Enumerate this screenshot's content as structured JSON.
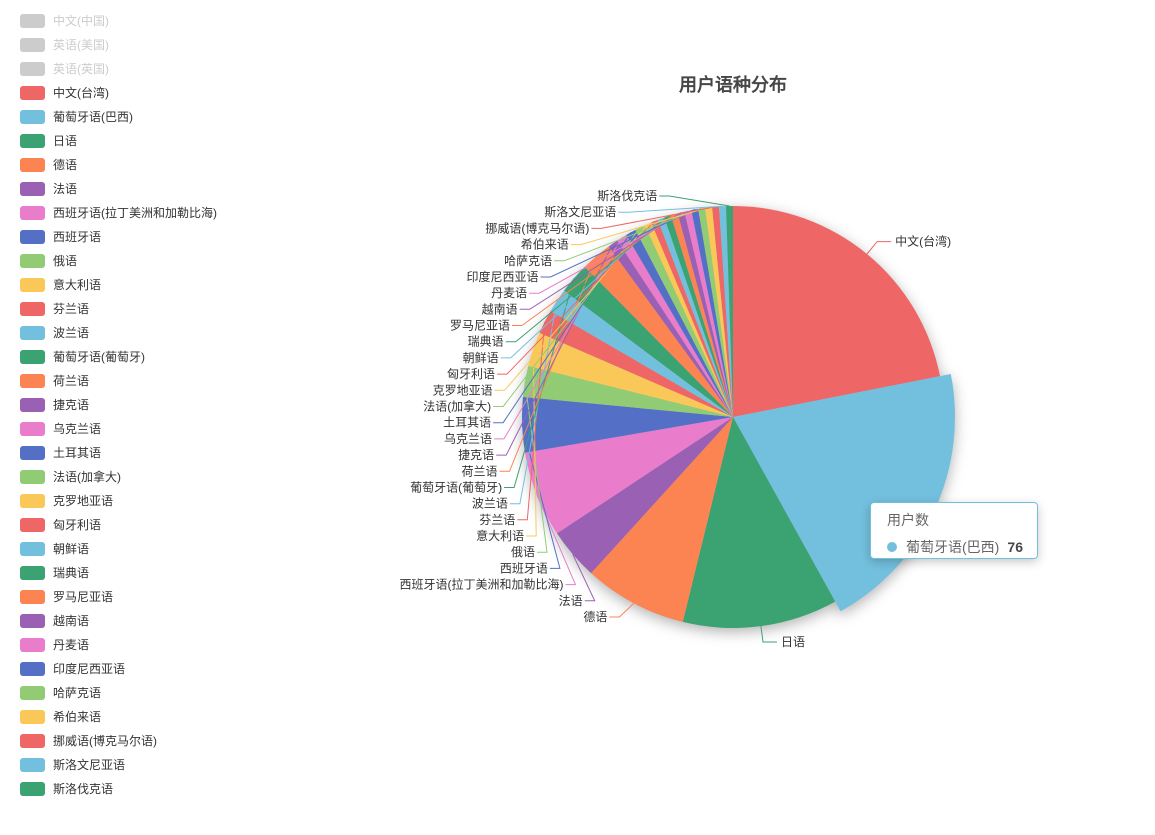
{
  "title": {
    "text": "用户语种分布"
  },
  "legend": {
    "items": [
      {
        "label": "中文(中国)",
        "color": "#cccccc",
        "enabled": false
      },
      {
        "label": "英语(美国)",
        "color": "#cccccc",
        "enabled": false
      },
      {
        "label": "英语(英国)",
        "color": "#cccccc",
        "enabled": false
      },
      {
        "label": "中文(台湾)",
        "color": "#ee6666",
        "enabled": true
      },
      {
        "label": "葡萄牙语(巴西)",
        "color": "#73c0de",
        "enabled": true
      },
      {
        "label": "日语",
        "color": "#3ba272",
        "enabled": true
      },
      {
        "label": "德语",
        "color": "#fc8452",
        "enabled": true
      },
      {
        "label": "法语",
        "color": "#9a60b4",
        "enabled": true
      },
      {
        "label": "西班牙语(拉丁美洲和加勒比海)",
        "color": "#ea7ccc",
        "enabled": true
      },
      {
        "label": "西班牙语",
        "color": "#5470c6",
        "enabled": true
      },
      {
        "label": "俄语",
        "color": "#91cc75",
        "enabled": true
      },
      {
        "label": "意大利语",
        "color": "#fac858",
        "enabled": true
      },
      {
        "label": "芬兰语",
        "color": "#ee6666",
        "enabled": true
      },
      {
        "label": "波兰语",
        "color": "#73c0de",
        "enabled": true
      },
      {
        "label": "葡萄牙语(葡萄牙)",
        "color": "#3ba272",
        "enabled": true
      },
      {
        "label": "荷兰语",
        "color": "#fc8452",
        "enabled": true
      },
      {
        "label": "捷克语",
        "color": "#9a60b4",
        "enabled": true
      },
      {
        "label": "乌克兰语",
        "color": "#ea7ccc",
        "enabled": true
      },
      {
        "label": "土耳其语",
        "color": "#5470c6",
        "enabled": true
      },
      {
        "label": "法语(加拿大)",
        "color": "#91cc75",
        "enabled": true
      },
      {
        "label": "克罗地亚语",
        "color": "#fac858",
        "enabled": true
      },
      {
        "label": "匈牙利语",
        "color": "#ee6666",
        "enabled": true
      },
      {
        "label": "朝鲜语",
        "color": "#73c0de",
        "enabled": true
      },
      {
        "label": "瑞典语",
        "color": "#3ba272",
        "enabled": true
      },
      {
        "label": "罗马尼亚语",
        "color": "#fc8452",
        "enabled": true
      },
      {
        "label": "越南语",
        "color": "#9a60b4",
        "enabled": true
      },
      {
        "label": "丹麦语",
        "color": "#ea7ccc",
        "enabled": true
      },
      {
        "label": "印度尼西亚语",
        "color": "#5470c6",
        "enabled": true
      },
      {
        "label": "哈萨克语",
        "color": "#91cc75",
        "enabled": true
      },
      {
        "label": "希伯来语",
        "color": "#fac858",
        "enabled": true
      },
      {
        "label": "挪威语(博克马尔语)",
        "color": "#ee6666",
        "enabled": true
      },
      {
        "label": "斯洛文尼亚语",
        "color": "#73c0de",
        "enabled": true
      },
      {
        "label": "斯洛伐克语",
        "color": "#3ba272",
        "enabled": true
      }
    ]
  },
  "chart_data": {
    "type": "pie",
    "title": "用户语种分布",
    "series_name": "用户数",
    "legend_position": "left",
    "start_angle_deg_clockwise_from_top": 0,
    "total": 379,
    "hovered_item": "葡萄牙语(巴西)",
    "hovered_label_hidden_by_tooltip": true,
    "disabled_legend_items": [
      "中文(中国)",
      "英语(美国)",
      "英语(英国)"
    ],
    "items": [
      {
        "name": "中文(台湾)",
        "value": 83,
        "color": "#ee6666"
      },
      {
        "name": "葡萄牙语(巴西)",
        "value": 76,
        "color": "#73c0de"
      },
      {
        "name": "日语",
        "value": 45,
        "color": "#3ba272"
      },
      {
        "name": "德语",
        "value": 30,
        "color": "#fc8452"
      },
      {
        "name": "法语",
        "value": 15,
        "color": "#9a60b4"
      },
      {
        "name": "西班牙语(拉丁美洲和加勒比海)",
        "value": 25,
        "color": "#ea7ccc"
      },
      {
        "name": "西班牙语",
        "value": 16,
        "color": "#5470c6"
      },
      {
        "name": "俄语",
        "value": 9,
        "color": "#91cc75"
      },
      {
        "name": "意大利语",
        "value": 10,
        "color": "#fac858"
      },
      {
        "name": "芬兰语",
        "value": 7,
        "color": "#ee6666"
      },
      {
        "name": "波兰语",
        "value": 7,
        "color": "#73c0de"
      },
      {
        "name": "葡萄牙语(葡萄牙)",
        "value": 9,
        "color": "#3ba272"
      },
      {
        "name": "荷兰语",
        "value": 9,
        "color": "#fc8452"
      },
      {
        "name": "捷克语",
        "value": 3,
        "color": "#9a60b4"
      },
      {
        "name": "乌克兰语",
        "value": 3,
        "color": "#ea7ccc"
      },
      {
        "name": "土耳其语",
        "value": 3,
        "color": "#5470c6"
      },
      {
        "name": "法语(加拿大)",
        "value": 3,
        "color": "#91cc75"
      },
      {
        "name": "克罗地亚语",
        "value": 2,
        "color": "#fac858"
      },
      {
        "name": "匈牙利语",
        "value": 2,
        "color": "#ee6666"
      },
      {
        "name": "朝鲜语",
        "value": 2,
        "color": "#73c0de"
      },
      {
        "name": "瑞典语",
        "value": 2,
        "color": "#3ba272"
      },
      {
        "name": "罗马尼亚语",
        "value": 2,
        "color": "#fc8452"
      },
      {
        "name": "越南语",
        "value": 2,
        "color": "#9a60b4"
      },
      {
        "name": "丹麦语",
        "value": 2,
        "color": "#ea7ccc"
      },
      {
        "name": "印度尼西亚语",
        "value": 2,
        "color": "#5470c6"
      },
      {
        "name": "哈萨克语",
        "value": 2,
        "color": "#91cc75"
      },
      {
        "name": "希伯来语",
        "value": 2,
        "color": "#fac858"
      },
      {
        "name": "挪威语(博克马尔语)",
        "value": 2,
        "color": "#ee6666"
      },
      {
        "name": "斯洛文尼亚语",
        "value": 2,
        "color": "#73c0de"
      },
      {
        "name": "斯洛伐克语",
        "value": 2,
        "color": "#3ba272"
      }
    ]
  },
  "tooltip": {
    "series_label": "用户数",
    "item_label": "葡萄牙语(巴西)",
    "value": "76",
    "marker_color": "#73c0de"
  }
}
